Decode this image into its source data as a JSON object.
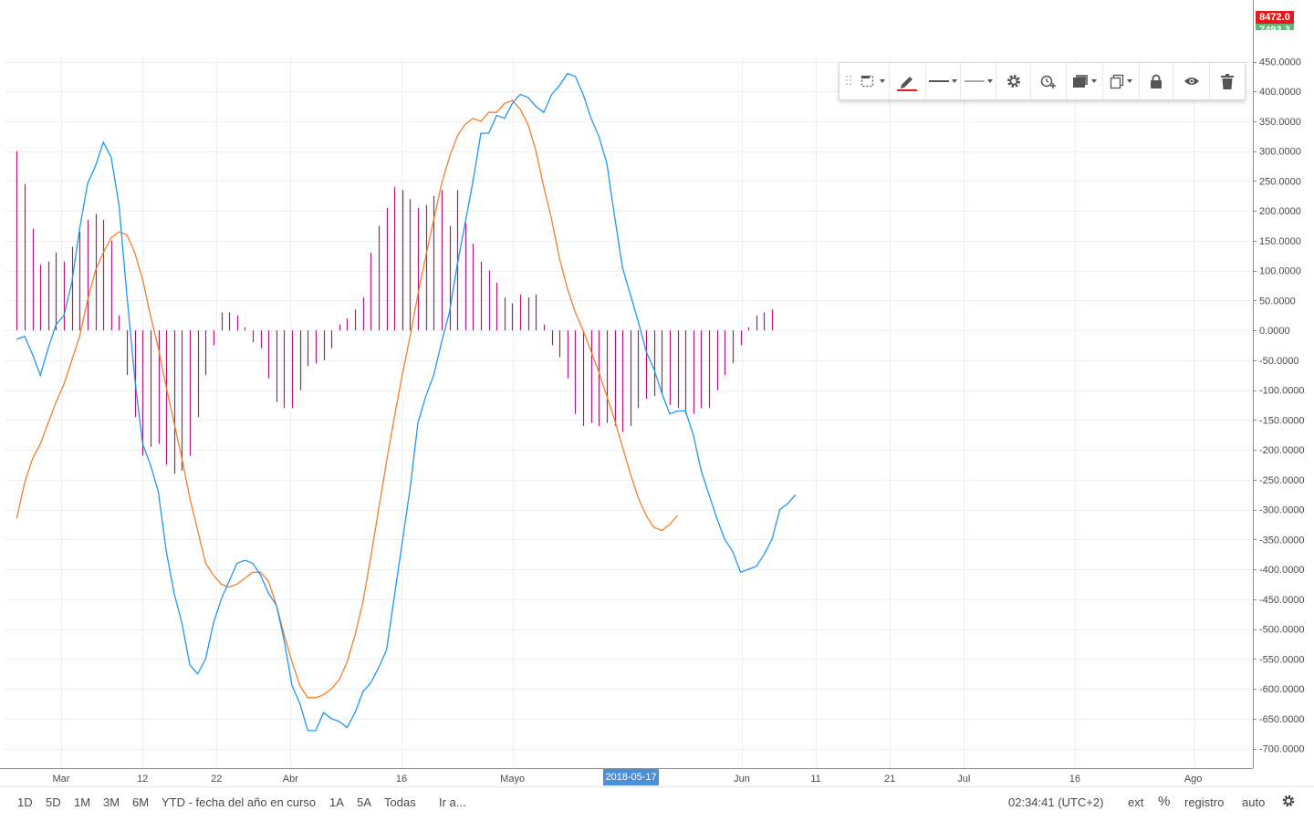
{
  "price_badges": {
    "current_price": "8472.0",
    "second_price": "7493.3"
  },
  "toolbar": {
    "items": [
      "drag-handle-icon",
      "selection-frame-icon",
      "pencil-icon",
      "line-style-icon",
      "line-width-icon",
      "gear-icon",
      "alarm-add-icon",
      "layers-icon",
      "clone-icon",
      "lock-icon",
      "eye-icon",
      "trash-icon"
    ],
    "pencil_color": "#e8191b"
  },
  "date_badge": "2018-05-17",
  "bottom_bar": {
    "ranges": [
      "1D",
      "5D",
      "1M",
      "3M",
      "6M",
      "YTD - fecha del año en curso",
      "1A",
      "5A",
      "Todas"
    ],
    "goto": "Ir a...",
    "clock": "02:34:41 (UTC+2)",
    "ext": "ext",
    "percent": "%",
    "log": "registro",
    "auto": "auto"
  },
  "chart_data": {
    "type": "line",
    "indicator": "MACD",
    "colors": {
      "macd": "#2196f3",
      "signal": "#f57f29",
      "histogram": "#b5157c",
      "grid": "#eef1f4"
    },
    "y_ticks": [
      "450.0000",
      "400.0000",
      "350.0000",
      "300.0000",
      "250.0000",
      "200.0000",
      "150.0000",
      "100.0000",
      "50.0000",
      "0.0000",
      "-50.0000",
      "-100.0000",
      "-150.0000",
      "-200.0000",
      "-250.0000",
      "-300.0000",
      "-350.0000",
      "-400.0000",
      "-450.0000",
      "-500.0000",
      "-550.0000",
      "-600.0000",
      "-650.0000",
      "-700.0000"
    ],
    "ylim": [
      -720,
      465
    ],
    "x_ticks": [
      {
        "label": "Mar",
        "date": "2018-03-01"
      },
      {
        "label": "12",
        "date": "2018-03-12"
      },
      {
        "label": "22",
        "date": "2018-03-22"
      },
      {
        "label": "Abr",
        "date": "2018-04-01"
      },
      {
        "label": "16",
        "date": "2018-04-16"
      },
      {
        "label": "Mayo",
        "date": "2018-05-01"
      },
      {
        "label": "Jun",
        "date": "2018-06-01"
      },
      {
        "label": "11",
        "date": "2018-06-11"
      },
      {
        "label": "21",
        "date": "2018-06-21"
      },
      {
        "label": "Jul",
        "date": "2018-07-01"
      },
      {
        "label": "16",
        "date": "2018-07-16"
      },
      {
        "label": "Ago",
        "date": "2018-08-01"
      }
    ],
    "start_date": "2018-02-23",
    "histogram": [
      300,
      245,
      170,
      110,
      115,
      130,
      115,
      140,
      165,
      185,
      195,
      185,
      150,
      25,
      -75,
      -145,
      -210,
      -195,
      -190,
      -225,
      -240,
      -235,
      -210,
      -145,
      -75,
      -25,
      30,
      30,
      25,
      5,
      -20,
      -30,
      -80,
      -120,
      -130,
      -130,
      -100,
      -60,
      -55,
      -50,
      -30,
      10,
      20,
      35,
      55,
      130,
      175,
      205,
      240,
      235,
      220,
      205,
      210,
      225,
      235,
      175,
      235,
      180,
      145,
      115,
      100,
      80,
      55,
      45,
      60,
      55,
      60,
      10,
      -25,
      -45,
      -80,
      -140,
      -160,
      -155,
      -160,
      -155,
      -160,
      -170,
      -160,
      -130,
      -115,
      -110,
      -105,
      -125,
      -130,
      -140,
      -140,
      -130,
      -130,
      -100,
      -75,
      -55,
      -25,
      5,
      25,
      30,
      35
    ],
    "series": [
      {
        "values": [
          -15,
          -10,
          -40,
          -75,
          -30,
          10,
          25,
          80,
          170,
          245,
          275,
          315,
          290,
          210,
          60,
          -80,
          -190,
          -225,
          -270,
          -370,
          -440,
          -490,
          -560,
          -575,
          -550,
          -490,
          -450,
          -420,
          -390,
          -385,
          -390,
          -410,
          -440,
          -460,
          -520,
          -595,
          -625,
          -670,
          -670,
          -640,
          -650,
          -655,
          -665,
          -640,
          -605,
          -590,
          -565,
          -535,
          -445,
          -355,
          -265,
          -155,
          -110,
          -75,
          -20,
          30,
          110,
          180,
          250,
          330,
          330,
          360,
          355,
          380,
          395,
          390,
          375,
          365,
          395,
          410,
          430,
          425,
          395,
          355,
          325,
          280,
          190,
          105,
          60,
          15,
          -35,
          -65,
          -105,
          -140,
          -135,
          -135,
          -175,
          -235,
          -275,
          -315,
          -350,
          -370,
          -405,
          -400,
          -395,
          -375,
          -350,
          -300,
          -290,
          -275
        ]
      },
      {
        "values": [
          -315,
          -255,
          -215,
          -190,
          -155,
          -120,
          -90,
          -50,
          -10,
          50,
          100,
          130,
          155,
          165,
          160,
          130,
          85,
          25,
          -30,
          -95,
          -155,
          -215,
          -280,
          -335,
          -390,
          -410,
          -425,
          -430,
          -425,
          -415,
          -405,
          -405,
          -420,
          -460,
          -510,
          -555,
          -595,
          -615,
          -615,
          -610,
          -600,
          -585,
          -555,
          -510,
          -455,
          -380,
          -300,
          -220,
          -145,
          -75,
          -10,
          60,
          125,
          185,
          245,
          290,
          325,
          345,
          355,
          350,
          365,
          365,
          380,
          385,
          370,
          345,
          300,
          240,
          185,
          120,
          70,
          30,
          0,
          -35,
          -70,
          -110,
          -150,
          -195,
          -240,
          -280,
          -310,
          -330,
          -335,
          -325,
          -310
        ]
      }
    ]
  }
}
